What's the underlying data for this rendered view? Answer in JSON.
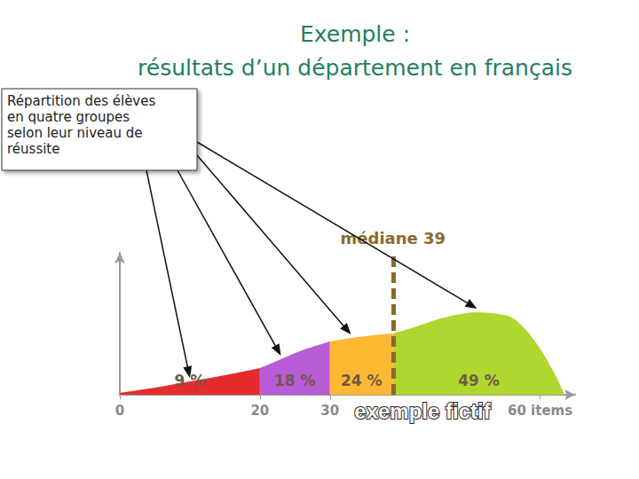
{
  "chart_data": {
    "type": "area",
    "title": "Exemple :\nrésultats d’un département en français",
    "annotations": [
      "Répartition des élèves\nen quatre groupes\nselon leur niveau de\nréussite",
      "exemple fictif"
    ],
    "median": {
      "value": 39,
      "label": "médiane 39"
    },
    "series": [
      {
        "label": "9 %",
        "color": "#e52b2b",
        "x": [
          0,
          5,
          10,
          15,
          20
        ],
        "values": [
          2,
          8,
          15,
          22,
          30
        ]
      },
      {
        "label": "18 %",
        "color": "#b85bd6",
        "x": [
          20,
          23,
          26,
          30
        ],
        "values": [
          30,
          40,
          50,
          60
        ]
      },
      {
        "label": "24 %",
        "color": "#ffb833",
        "x": [
          30,
          33,
          36,
          39
        ],
        "values": [
          60,
          64,
          67,
          69
        ]
      },
      {
        "label": "49 %",
        "color": "#b0d630",
        "x": [
          39,
          42,
          45,
          48,
          51,
          54,
          56,
          58,
          60,
          62,
          63.5
        ],
        "values": [
          69,
          76,
          84,
          90,
          93,
          91,
          87,
          73,
          52,
          25,
          0
        ]
      }
    ],
    "xlim": [
      0,
      65
    ],
    "xticks": [
      0,
      20,
      30,
      {
        "value": 60,
        "label": "60 items"
      }
    ],
    "ylim": [
      0,
      160
    ],
    "tick_labels": "x",
    "grid": false
  }
}
